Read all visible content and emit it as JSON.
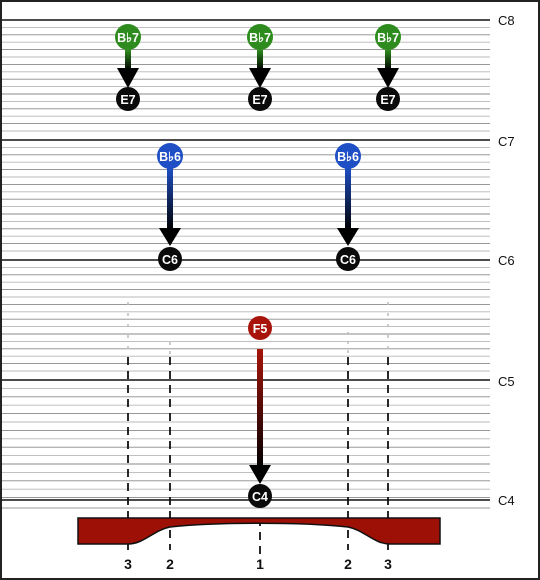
{
  "octave_labels": [
    "C8",
    "C7",
    "C6",
    "C5",
    "C4"
  ],
  "position_labels": [
    "3",
    "2",
    "1",
    "2",
    "3"
  ],
  "markers": [
    {
      "from": "B♭7",
      "to": "E7",
      "color": "#2e8b1e",
      "count": 3
    },
    {
      "from": "B♭6",
      "to": "C6",
      "color": "#1f4fc4",
      "count": 2
    },
    {
      "from": "F5",
      "to": "C4",
      "color": "#a8140a",
      "count": 1
    }
  ],
  "colors": {
    "green": "#2e8b1e",
    "blue": "#1f4fc4",
    "red": "#a8140a",
    "plate": "#9c1005",
    "node": "#0a0a0a"
  }
}
